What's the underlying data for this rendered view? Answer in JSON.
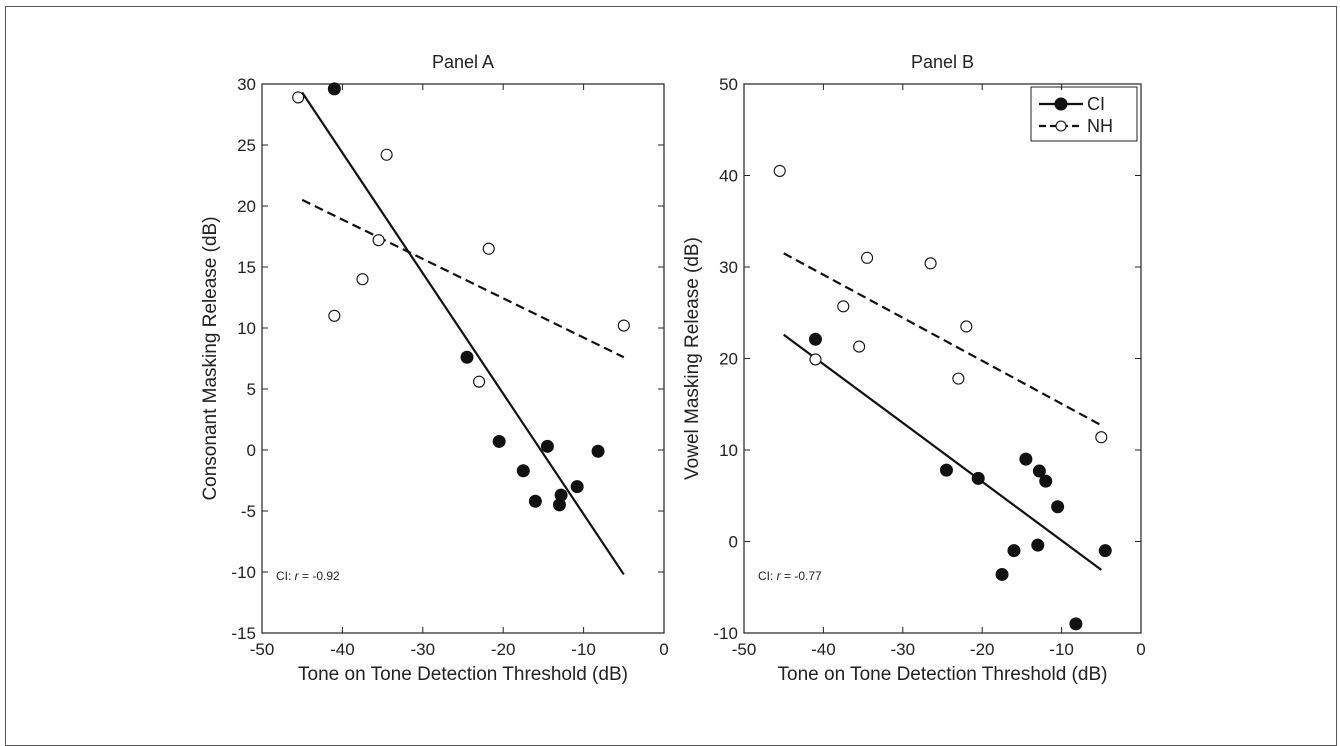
{
  "chart_data": [
    {
      "type": "scatter",
      "title": "Panel A",
      "xlabel": "Tone on Tone Detection Threshold (dB)",
      "ylabel": "Consonant Masking Release (dB)",
      "xlim": [
        -50,
        0
      ],
      "ylim": [
        -15,
        30
      ],
      "xticks": [
        "-50",
        "-40",
        "-30",
        "-20",
        "-10",
        "0"
      ],
      "yticks": [
        "-15",
        "-10",
        "-5",
        "0",
        "5",
        "10",
        "15",
        "20",
        "25",
        "30"
      ],
      "annotation": {
        "prefix": "CI: ",
        "r_symbol": "r",
        "value": " = -0.92"
      },
      "series": [
        {
          "name": "CI",
          "marker": "filled",
          "color": "#111111",
          "points": [
            [
              -41,
              29.6
            ],
            [
              -24.5,
              7.6
            ],
            [
              -20.5,
              0.7
            ],
            [
              -17.5,
              -1.7
            ],
            [
              -16,
              -4.2
            ],
            [
              -14.5,
              0.3
            ],
            [
              -13,
              -4.5
            ],
            [
              -12.8,
              -3.7
            ],
            [
              -10.8,
              -3.0
            ],
            [
              -8.2,
              -0.1
            ]
          ],
          "fit": [
            [
              -45,
              29.3
            ],
            [
              -5,
              -10.2
            ]
          ],
          "fit_style": "solid"
        },
        {
          "name": "NH",
          "marker": "open",
          "color": "#111111",
          "points": [
            [
              -45.5,
              28.9
            ],
            [
              -41,
              11.0
            ],
            [
              -37.5,
              14.0
            ],
            [
              -35.5,
              17.2
            ],
            [
              -34.5,
              24.2
            ],
            [
              -23,
              5.6
            ],
            [
              -21.8,
              16.5
            ],
            [
              -5,
              10.2
            ]
          ],
          "fit": [
            [
              -45,
              20.5
            ],
            [
              -5,
              7.6
            ]
          ],
          "fit_style": "dashed"
        }
      ]
    },
    {
      "type": "scatter",
      "title": "Panel B",
      "xlabel": "Tone on Tone Detection Threshold (dB)",
      "ylabel": "Vowel Masking Release (dB)",
      "xlim": [
        -50,
        0
      ],
      "ylim": [
        -10,
        50
      ],
      "xticks": [
        "-50",
        "-40",
        "-30",
        "-20",
        "-10",
        "0"
      ],
      "yticks": [
        "-10",
        "0",
        "10",
        "20",
        "30",
        "40",
        "50"
      ],
      "annotation": {
        "prefix": "CI: ",
        "r_symbol": "r",
        "value": " = -0.77"
      },
      "legend": {
        "position": "top-right",
        "entries": [
          "CI",
          "NH"
        ]
      },
      "series": [
        {
          "name": "CI",
          "marker": "filled",
          "color": "#111111",
          "points": [
            [
              -41,
              22.1
            ],
            [
              -24.5,
              7.8
            ],
            [
              -20.5,
              6.9
            ],
            [
              -17.5,
              -3.6
            ],
            [
              -16,
              -1.0
            ],
            [
              -14.5,
              9.0
            ],
            [
              -13,
              -0.4
            ],
            [
              -12.8,
              7.7
            ],
            [
              -12,
              6.6
            ],
            [
              -10.5,
              3.8
            ],
            [
              -8.2,
              -9.0
            ],
            [
              -4.5,
              -1.0
            ]
          ],
          "fit": [
            [
              -45,
              22.6
            ],
            [
              -5,
              -3.1
            ]
          ],
          "fit_style": "solid"
        },
        {
          "name": "NH",
          "marker": "open",
          "color": "#111111",
          "points": [
            [
              -45.5,
              40.5
            ],
            [
              -41,
              19.9
            ],
            [
              -37.5,
              25.7
            ],
            [
              -35.5,
              21.3
            ],
            [
              -34.5,
              31.0
            ],
            [
              -26.5,
              30.4
            ],
            [
              -23,
              17.8
            ],
            [
              -22,
              23.5
            ],
            [
              -5,
              11.4
            ]
          ],
          "fit": [
            [
              -45,
              31.5
            ],
            [
              -5,
              12.7
            ]
          ],
          "fit_style": "dashed"
        }
      ]
    }
  ]
}
